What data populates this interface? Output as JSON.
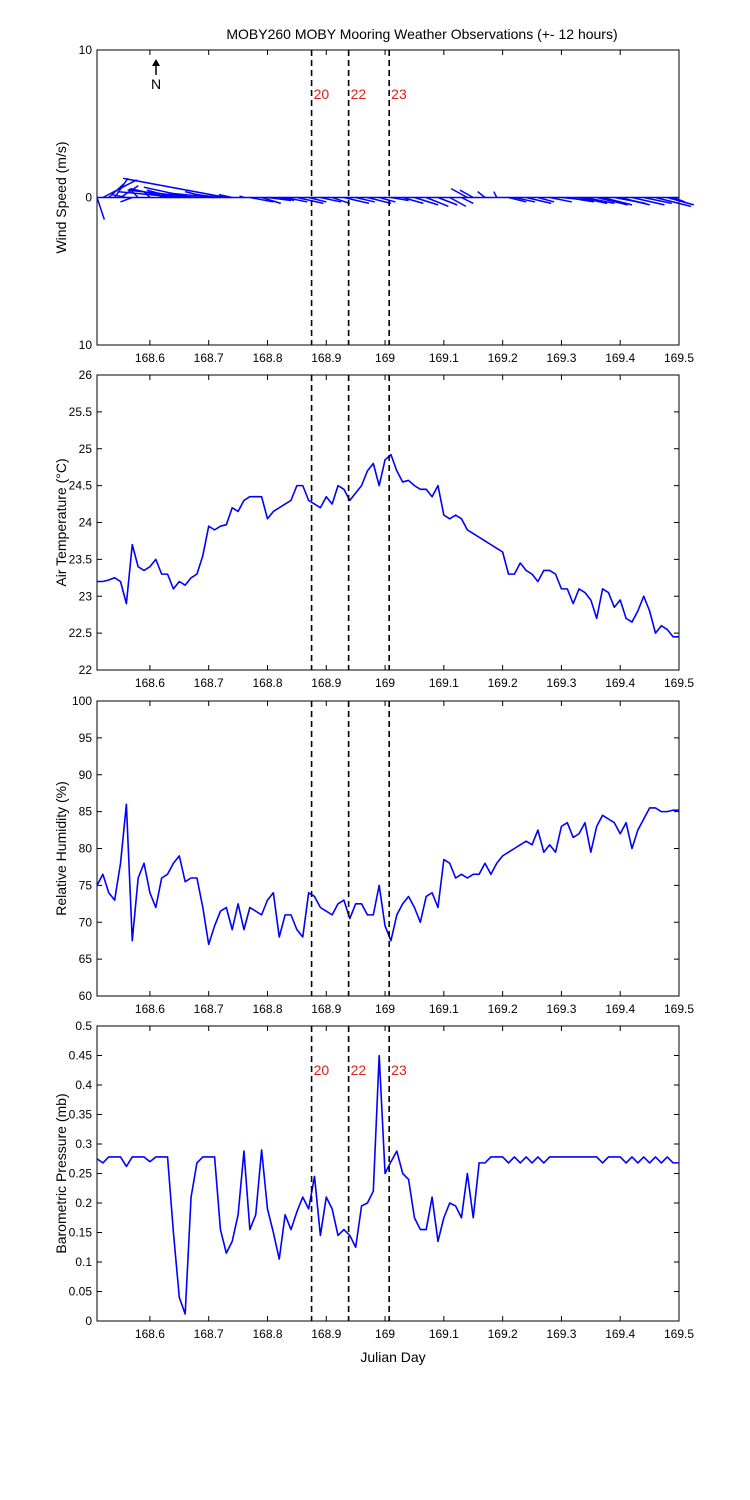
{
  "figure": {
    "title": "MOBY260 MOBY Mooring Weather Observations (+- 12 hours)",
    "xlabel": "Julian Day",
    "north_label": "N",
    "series_color": "#0000ff",
    "marker_color": "#e02020",
    "markers": [
      {
        "x": 168.875,
        "label": "20"
      },
      {
        "x": 168.938,
        "label": "22"
      },
      {
        "x": 169.007,
        "label": "23"
      }
    ],
    "marker_labels_on_panels": [
      0,
      3
    ]
  },
  "chart_data": [
    {
      "type": "quiver",
      "ylabel": "Wind Speed (m/s)",
      "xlim": [
        168.51,
        169.5
      ],
      "ylim": [
        -10,
        10
      ],
      "yticks": [
        -10,
        0,
        10
      ],
      "ytick_labels": [
        "10",
        "0",
        "10"
      ],
      "xticks": [
        168.6,
        168.7,
        168.8,
        168.9,
        169.0,
        169.1,
        169.2,
        169.3,
        169.4,
        169.5
      ],
      "xtick_labels": [
        "168.6",
        "168.7",
        "168.8",
        "168.9",
        "169",
        "169.1",
        "169.2",
        "169.3",
        "169.4",
        "169.5"
      ],
      "vectors": [
        [
          168.51,
          -1.5,
          0.5
        ],
        [
          168.52,
          1.2,
          2.3
        ],
        [
          168.53,
          0.9,
          1.0
        ],
        [
          168.54,
          1.3,
          0.9
        ],
        [
          168.55,
          0.8,
          1.2
        ],
        [
          168.56,
          0.2,
          -1.0
        ],
        [
          168.57,
          -0.3,
          -0.8
        ],
        [
          168.58,
          0.6,
          -0.6
        ],
        [
          168.6,
          0.4,
          -0.4
        ],
        [
          168.62,
          0.3,
          -0.3
        ],
        [
          168.63,
          0.6,
          -2.5
        ],
        [
          168.64,
          0.5,
          -1.8
        ],
        [
          168.65,
          0.4,
          -4.2
        ],
        [
          168.66,
          0.3,
          -1.9
        ],
        [
          168.67,
          0.7,
          -3.2
        ],
        [
          168.68,
          0.5,
          -4.7
        ],
        [
          168.7,
          0.4,
          -1.6
        ],
        [
          168.71,
          0.3,
          -3.1
        ],
        [
          168.72,
          0.2,
          -1.7
        ],
        [
          168.73,
          1.3,
          -7.0
        ],
        [
          168.74,
          0.2,
          -0.9
        ],
        [
          168.76,
          0.1,
          -0.3
        ],
        [
          168.77,
          -0.3,
          1.6
        ],
        [
          168.79,
          -0.4,
          1.3
        ],
        [
          168.8,
          -0.2,
          1.6
        ],
        [
          168.82,
          -0.2,
          1.0
        ],
        [
          168.83,
          -0.3,
          1.5
        ],
        [
          168.85,
          -0.4,
          1.8
        ],
        [
          168.87,
          -0.3,
          1.2
        ],
        [
          168.89,
          -0.3,
          1.4
        ],
        [
          168.91,
          -0.4,
          1.2
        ],
        [
          168.93,
          -0.4,
          1.7
        ],
        [
          168.95,
          -0.3,
          1.3
        ],
        [
          168.97,
          -0.4,
          1.6
        ],
        [
          168.99,
          -0.3,
          1.1
        ],
        [
          169.01,
          -0.2,
          1.2
        ],
        [
          169.03,
          -0.4,
          1.4
        ],
        [
          169.05,
          -0.5,
          1.6
        ],
        [
          169.07,
          -0.6,
          1.5
        ],
        [
          169.09,
          -0.5,
          1.3
        ],
        [
          169.11,
          -0.6,
          1.1
        ],
        [
          169.13,
          -0.4,
          0.8
        ],
        [
          169.14,
          0.6,
          -1.1
        ],
        [
          169.15,
          0.5,
          -0.9
        ],
        [
          169.17,
          0.4,
          -0.5
        ],
        [
          169.19,
          0.4,
          -0.2
        ],
        [
          169.21,
          -0.3,
          1.2
        ],
        [
          169.22,
          -0.3,
          1.4
        ],
        [
          169.24,
          -0.4,
          1.7
        ],
        [
          169.26,
          -0.3,
          1.1
        ],
        [
          169.28,
          -0.3,
          1.5
        ],
        [
          169.3,
          -0.2,
          2.1
        ],
        [
          169.31,
          -0.3,
          1.8
        ],
        [
          169.33,
          -0.4,
          1.9
        ],
        [
          169.34,
          -0.4,
          2.0
        ],
        [
          169.36,
          -0.5,
          2.1
        ],
        [
          169.37,
          -0.5,
          2.0
        ],
        [
          169.39,
          -0.4,
          2.1
        ],
        [
          169.4,
          -0.5,
          2.0
        ],
        [
          169.42,
          -0.5,
          2.2
        ],
        [
          169.44,
          -0.4,
          1.9
        ],
        [
          169.46,
          -0.6,
          2.4
        ],
        [
          169.48,
          -0.5,
          1.8
        ],
        [
          169.49,
          -0.3,
          0.8
        ]
      ]
    },
    {
      "type": "line",
      "ylabel": "Air Temperature (°C)",
      "xlim": [
        168.51,
        169.5
      ],
      "ylim": [
        22,
        26
      ],
      "yticks": [
        22,
        22.5,
        23,
        23.5,
        24,
        24.5,
        25,
        25.5,
        26
      ],
      "ytick_labels": [
        "22",
        "22.5",
        "23",
        "23.5",
        "24",
        "24.5",
        "25",
        "25.5",
        "26"
      ],
      "xticks": [
        168.6,
        168.7,
        168.8,
        168.9,
        169.0,
        169.1,
        169.2,
        169.3,
        169.4,
        169.5
      ],
      "xtick_labels": [
        "168.6",
        "168.7",
        "168.8",
        "168.9",
        "169",
        "169.1",
        "169.2",
        "169.3",
        "169.4",
        "169.5"
      ],
      "series": [
        {
          "x": [
            168.51,
            168.52,
            168.53,
            168.54,
            168.55,
            168.56,
            168.57,
            168.58,
            168.59,
            168.6,
            168.61,
            168.62,
            168.63,
            168.64,
            168.65,
            168.66,
            168.67,
            168.68,
            168.69,
            168.7,
            168.71,
            168.72,
            168.73,
            168.74,
            168.75,
            168.76,
            168.77,
            168.78,
            168.79,
            168.8,
            168.81,
            168.82,
            168.83,
            168.84,
            168.85,
            168.86,
            168.87,
            168.88,
            168.89,
            168.9,
            168.91,
            168.92,
            168.93,
            168.94,
            168.95,
            168.96,
            168.97,
            168.98,
            168.99,
            169.0,
            169.01,
            169.02,
            169.03,
            169.04,
            169.05,
            169.06,
            169.07,
            169.08,
            169.09,
            169.1,
            169.11,
            169.12,
            169.13,
            169.14,
            169.15,
            169.16,
            169.17,
            169.18,
            169.19,
            169.2,
            169.21,
            169.22,
            169.23,
            169.24,
            169.25,
            169.26,
            169.27,
            169.28,
            169.29,
            169.3,
            169.31,
            169.32,
            169.33,
            169.34,
            169.35,
            169.36,
            169.37,
            169.38,
            169.39,
            169.4,
            169.41,
            169.42,
            169.43,
            169.44,
            169.45,
            169.46,
            169.47,
            169.48,
            169.49,
            169.5
          ],
          "values": [
            23.2,
            23.2,
            23.22,
            23.25,
            23.2,
            22.9,
            23.7,
            23.4,
            23.35,
            23.4,
            23.5,
            23.3,
            23.3,
            23.1,
            23.2,
            23.15,
            23.25,
            23.3,
            23.55,
            23.95,
            23.9,
            23.95,
            23.97,
            24.2,
            24.15,
            24.3,
            24.35,
            24.35,
            24.35,
            24.05,
            24.15,
            24.2,
            24.25,
            24.3,
            24.5,
            24.5,
            24.3,
            24.25,
            24.2,
            24.35,
            24.25,
            24.5,
            24.45,
            24.3,
            24.4,
            24.5,
            24.7,
            24.8,
            24.5,
            24.85,
            24.92,
            24.7,
            24.55,
            24.57,
            24.5,
            24.45,
            24.45,
            24.35,
            24.5,
            24.1,
            24.05,
            24.1,
            24.05,
            23.9,
            23.85,
            23.8,
            23.75,
            23.7,
            23.65,
            23.6,
            23.3,
            23.3,
            23.45,
            23.35,
            23.3,
            23.2,
            23.35,
            23.35,
            23.3,
            23.1,
            23.1,
            22.9,
            23.1,
            23.05,
            22.95,
            22.7,
            23.1,
            23.05,
            22.85,
            22.95,
            22.7,
            22.65,
            22.8,
            23.0,
            22.8,
            22.5,
            22.6,
            22.55,
            22.45,
            22.45
          ]
        }
      ]
    },
    {
      "type": "line",
      "ylabel": "Relative Humidity (%)",
      "xlim": [
        168.51,
        169.5
      ],
      "ylim": [
        60,
        100
      ],
      "yticks": [
        60,
        65,
        70,
        75,
        80,
        85,
        90,
        95,
        100
      ],
      "ytick_labels": [
        "60",
        "65",
        "70",
        "75",
        "80",
        "85",
        "90",
        "95",
        "100"
      ],
      "xticks": [
        168.6,
        168.7,
        168.8,
        168.9,
        169.0,
        169.1,
        169.2,
        169.3,
        169.4,
        169.5
      ],
      "xtick_labels": [
        "168.6",
        "168.7",
        "168.8",
        "168.9",
        "169",
        "169.1",
        "169.2",
        "169.3",
        "169.4",
        "169.5"
      ],
      "series": [
        {
          "x": [
            168.51,
            168.52,
            168.53,
            168.54,
            168.55,
            168.56,
            168.57,
            168.58,
            168.59,
            168.6,
            168.61,
            168.62,
            168.63,
            168.64,
            168.65,
            168.66,
            168.67,
            168.68,
            168.69,
            168.7,
            168.71,
            168.72,
            168.73,
            168.74,
            168.75,
            168.76,
            168.77,
            168.78,
            168.79,
            168.8,
            168.81,
            168.82,
            168.83,
            168.84,
            168.85,
            168.86,
            168.87,
            168.88,
            168.89,
            168.9,
            168.91,
            168.92,
            168.93,
            168.94,
            168.95,
            168.96,
            168.97,
            168.98,
            168.99,
            169.0,
            169.01,
            169.02,
            169.03,
            169.04,
            169.05,
            169.06,
            169.07,
            169.08,
            169.09,
            169.1,
            169.11,
            169.12,
            169.13,
            169.14,
            169.15,
            169.16,
            169.17,
            169.18,
            169.19,
            169.2,
            169.21,
            169.22,
            169.23,
            169.24,
            169.25,
            169.26,
            169.27,
            169.28,
            169.29,
            169.3,
            169.31,
            169.32,
            169.33,
            169.34,
            169.35,
            169.36,
            169.37,
            169.38,
            169.39,
            169.4,
            169.41,
            169.42,
            169.43,
            169.44,
            169.45,
            169.46,
            169.47,
            169.48,
            169.49,
            169.5
          ],
          "values": [
            75,
            76.5,
            74,
            73,
            78,
            86,
            67.5,
            76,
            78,
            74,
            72,
            76,
            76.5,
            78,
            79,
            75.5,
            76,
            76,
            72,
            67,
            69.5,
            71.5,
            72,
            69,
            72.5,
            69,
            72,
            71.5,
            71,
            73,
            74,
            68,
            71,
            71,
            69,
            68,
            74,
            73.5,
            72,
            71.5,
            71,
            72.5,
            73,
            70.5,
            72.5,
            72.5,
            71,
            71,
            75,
            69.5,
            67.5,
            71,
            72.5,
            73.5,
            72,
            70,
            73.5,
            74,
            72,
            78.5,
            78,
            76,
            76.5,
            76,
            76.5,
            76.5,
            78,
            76.5,
            78,
            79,
            79.5,
            80,
            80.5,
            81,
            80.5,
            82.5,
            79.5,
            80.5,
            79.5,
            83,
            83.5,
            81.5,
            82,
            83.5,
            79.5,
            83,
            84.5,
            84,
            83.5,
            82,
            83.5,
            80,
            82.5,
            84,
            85.5,
            85.5,
            85,
            85,
            85.2,
            85.2
          ]
        }
      ]
    },
    {
      "type": "line",
      "ylabel": "Barometric Pressure (mb)",
      "xlim": [
        168.51,
        169.5
      ],
      "ylim": [
        0,
        0.5
      ],
      "yticks": [
        0,
        0.05,
        0.1,
        0.15,
        0.2,
        0.25,
        0.3,
        0.35,
        0.4,
        0.45,
        0.5
      ],
      "ytick_labels": [
        "0",
        "0.05",
        "0.1",
        "0.15",
        "0.2",
        "0.25",
        "0.3",
        "0.35",
        "0.4",
        "0.45",
        "0.5"
      ],
      "xticks": [
        168.6,
        168.7,
        168.8,
        168.9,
        169.0,
        169.1,
        169.2,
        169.3,
        169.4,
        169.5
      ],
      "xtick_labels": [
        "168.6",
        "168.7",
        "168.8",
        "168.9",
        "169",
        "169.1",
        "169.2",
        "169.3",
        "169.4",
        "169.5"
      ],
      "series": [
        {
          "x": [
            168.51,
            168.52,
            168.53,
            168.54,
            168.55,
            168.56,
            168.57,
            168.58,
            168.59,
            168.6,
            168.61,
            168.62,
            168.63,
            168.64,
            168.65,
            168.66,
            168.67,
            168.68,
            168.69,
            168.7,
            168.71,
            168.72,
            168.73,
            168.74,
            168.75,
            168.76,
            168.77,
            168.78,
            168.79,
            168.8,
            168.81,
            168.82,
            168.83,
            168.84,
            168.85,
            168.86,
            168.87,
            168.88,
            168.89,
            168.9,
            168.91,
            168.92,
            168.93,
            168.94,
            168.95,
            168.96,
            168.97,
            168.98,
            168.99,
            169.0,
            169.01,
            169.02,
            169.03,
            169.04,
            169.05,
            169.06,
            169.07,
            169.08,
            169.09,
            169.1,
            169.11,
            169.12,
            169.13,
            169.14,
            169.15,
            169.16,
            169.17,
            169.18,
            169.19,
            169.2,
            169.21,
            169.22,
            169.23,
            169.24,
            169.25,
            169.26,
            169.27,
            169.28,
            169.29,
            169.3,
            169.31,
            169.32,
            169.33,
            169.34,
            169.35,
            169.36,
            169.37,
            169.38,
            169.39,
            169.4,
            169.41,
            169.42,
            169.43,
            169.44,
            169.45,
            169.46,
            169.47,
            169.48,
            169.49,
            169.5
          ],
          "values": [
            0.275,
            0.268,
            0.278,
            0.278,
            0.278,
            0.262,
            0.278,
            0.278,
            0.278,
            0.27,
            0.278,
            0.278,
            0.278,
            0.15,
            0.04,
            0.012,
            0.21,
            0.268,
            0.278,
            0.278,
            0.278,
            0.155,
            0.115,
            0.135,
            0.18,
            0.288,
            0.155,
            0.18,
            0.29,
            0.19,
            0.15,
            0.105,
            0.18,
            0.155,
            0.185,
            0.21,
            0.19,
            0.245,
            0.145,
            0.21,
            0.19,
            0.145,
            0.155,
            0.145,
            0.125,
            0.195,
            0.2,
            0.22,
            0.45,
            0.25,
            0.27,
            0.288,
            0.25,
            0.24,
            0.175,
            0.155,
            0.155,
            0.21,
            0.135,
            0.175,
            0.2,
            0.195,
            0.175,
            0.25,
            0.175,
            0.268,
            0.268,
            0.278,
            0.278,
            0.278,
            0.268,
            0.278,
            0.268,
            0.278,
            0.268,
            0.278,
            0.268,
            0.278,
            0.278,
            0.278,
            0.278,
            0.278,
            0.278,
            0.278,
            0.278,
            0.278,
            0.268,
            0.278,
            0.278,
            0.278,
            0.268,
            0.278,
            0.268,
            0.278,
            0.268,
            0.278,
            0.268,
            0.278,
            0.268,
            0.268
          ]
        }
      ]
    }
  ]
}
